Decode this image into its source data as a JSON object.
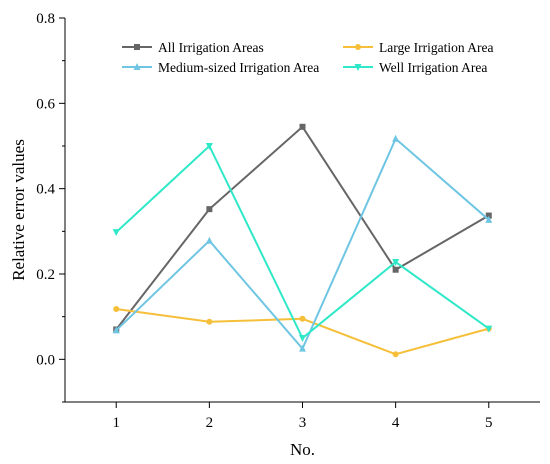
{
  "chart_data": {
    "type": "line",
    "title": "",
    "xlabel": "No.",
    "ylabel": "Relative error values",
    "x": [
      1,
      2,
      3,
      4,
      5
    ],
    "xlim": [
      0.45,
      5.55
    ],
    "ylim": [
      -0.1,
      0.8
    ],
    "x_ticks": [
      "1",
      "2",
      "3",
      "4",
      "5"
    ],
    "y_ticks": [
      "0.0",
      "0.2",
      "0.4",
      "0.6",
      "0.8"
    ],
    "grid": false,
    "legend_position": "top",
    "series": [
      {
        "name": "All Irrigation Areas",
        "color": "#666666",
        "marker": "square",
        "values": [
          0.07,
          0.352,
          0.545,
          0.21,
          0.337
        ]
      },
      {
        "name": "Large Irrigation Area",
        "color": "#f5bf3a",
        "marker": "circle",
        "values": [
          0.118,
          0.088,
          0.095,
          0.012,
          0.072
        ]
      },
      {
        "name": "Medium-sized Irrigation Area",
        "color": "#6fc6e3",
        "marker": "triangle-up",
        "values": [
          0.068,
          0.278,
          0.025,
          0.517,
          0.327
        ]
      },
      {
        "name": "Well Irrigation Area",
        "color": "#2ee8c8",
        "marker": "triangle-down",
        "values": [
          0.298,
          0.5,
          0.05,
          0.228,
          0.072
        ]
      }
    ]
  }
}
